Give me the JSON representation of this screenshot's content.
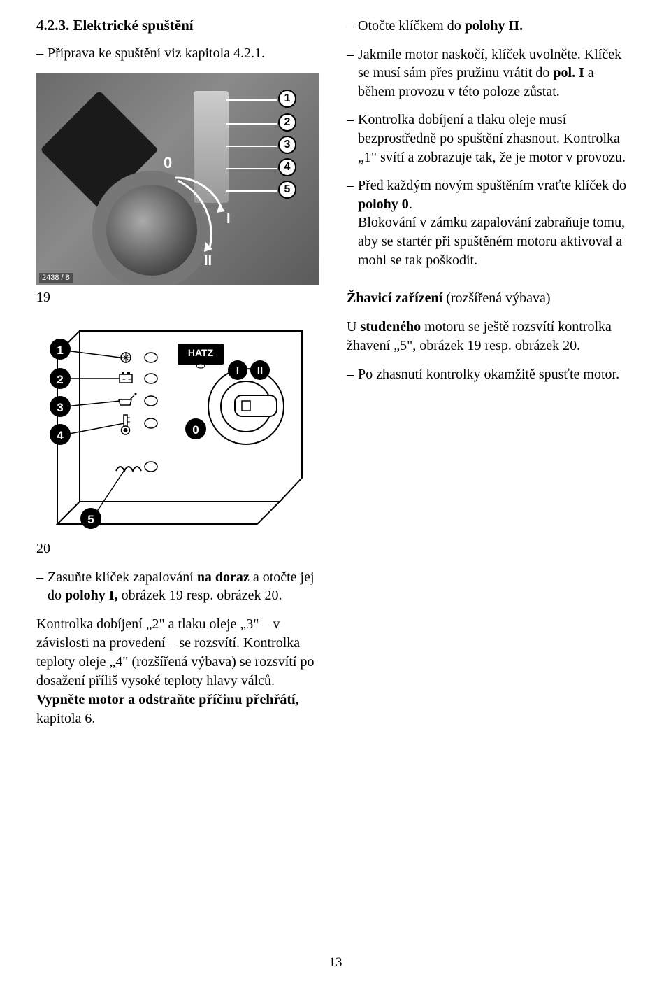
{
  "section": {
    "number": "4.2.3.",
    "title": "Elektrické spuštění"
  },
  "leftIntro": {
    "dash": "–",
    "text": "Příprava ke spuštění viz kapitola 4.2.1."
  },
  "photo": {
    "code": "2438 / 8",
    "callouts": [
      "1",
      "2",
      "3",
      "4",
      "5"
    ],
    "zero": "0",
    "romanI": "I",
    "romanII": "II",
    "figNum": "19"
  },
  "diagram": {
    "callouts": [
      "1",
      "2",
      "3",
      "4",
      "5"
    ],
    "zero": "0",
    "romanI": "I",
    "romanII": "II",
    "logo": "HATZ",
    "figNum": "20"
  },
  "right": {
    "items": [
      {
        "dash": "–",
        "html": "Otočte klíčkem do <b>polohy II.</b>"
      },
      {
        "dash": "–",
        "html": "Jakmile motor naskočí, klíček uvolněte. Klíček se musí sám přes pružinu vrátit do <b>pol. I</b> a během provozu v této poloze zůstat."
      },
      {
        "dash": "–",
        "html": "Kontrolka dobíjení a tlaku oleje musí bezprostředně po spuštění zhasnout. Kontrolka „1\" svítí a zobrazuje tak, že je motor v provozu."
      },
      {
        "dash": "–",
        "html": "Před každým novým spuštěním vraťte klíček do <b>polohy 0</b>.<br>Blokování v zámku zapalování zabraňuje tomu, aby se startér při spuštěném motoru aktivoval a mohl se tak poškodit."
      }
    ],
    "glowTitle": "Žhavicí zařízení",
    "glowParen": "(rozšířená výbava)",
    "glowText": "U <b>studeného</b> motoru se ještě rozsvítí kontrolka žhavení „5\", obrázek 19 resp. obrázek 20.",
    "glowItem": {
      "dash": "–",
      "text": "Po zhasnutí kontrolky okamžitě spusťte motor."
    }
  },
  "below": {
    "item1": {
      "dash": "–",
      "html": "Zasuňte klíček zapalování <b>na doraz</b> a otočte jej do <b>polohy I,</b> obrázek 19 resp. obrázek 20."
    },
    "para": "Kontrolka dobíjení „2\" a tlaku oleje „3\" – v závislosti na provedení – se rozsvítí. Kontrolka teploty oleje „4\" (rozšířená výbava) se rozsvítí po dosažení příliš vysoké teploty hlavy válců.<br><b>Vypněte motor a odstraňte příčinu přehřátí,</b> kapitola 6."
  },
  "pageNum": "13",
  "colors": {
    "text": "#000000",
    "bg": "#ffffff"
  }
}
